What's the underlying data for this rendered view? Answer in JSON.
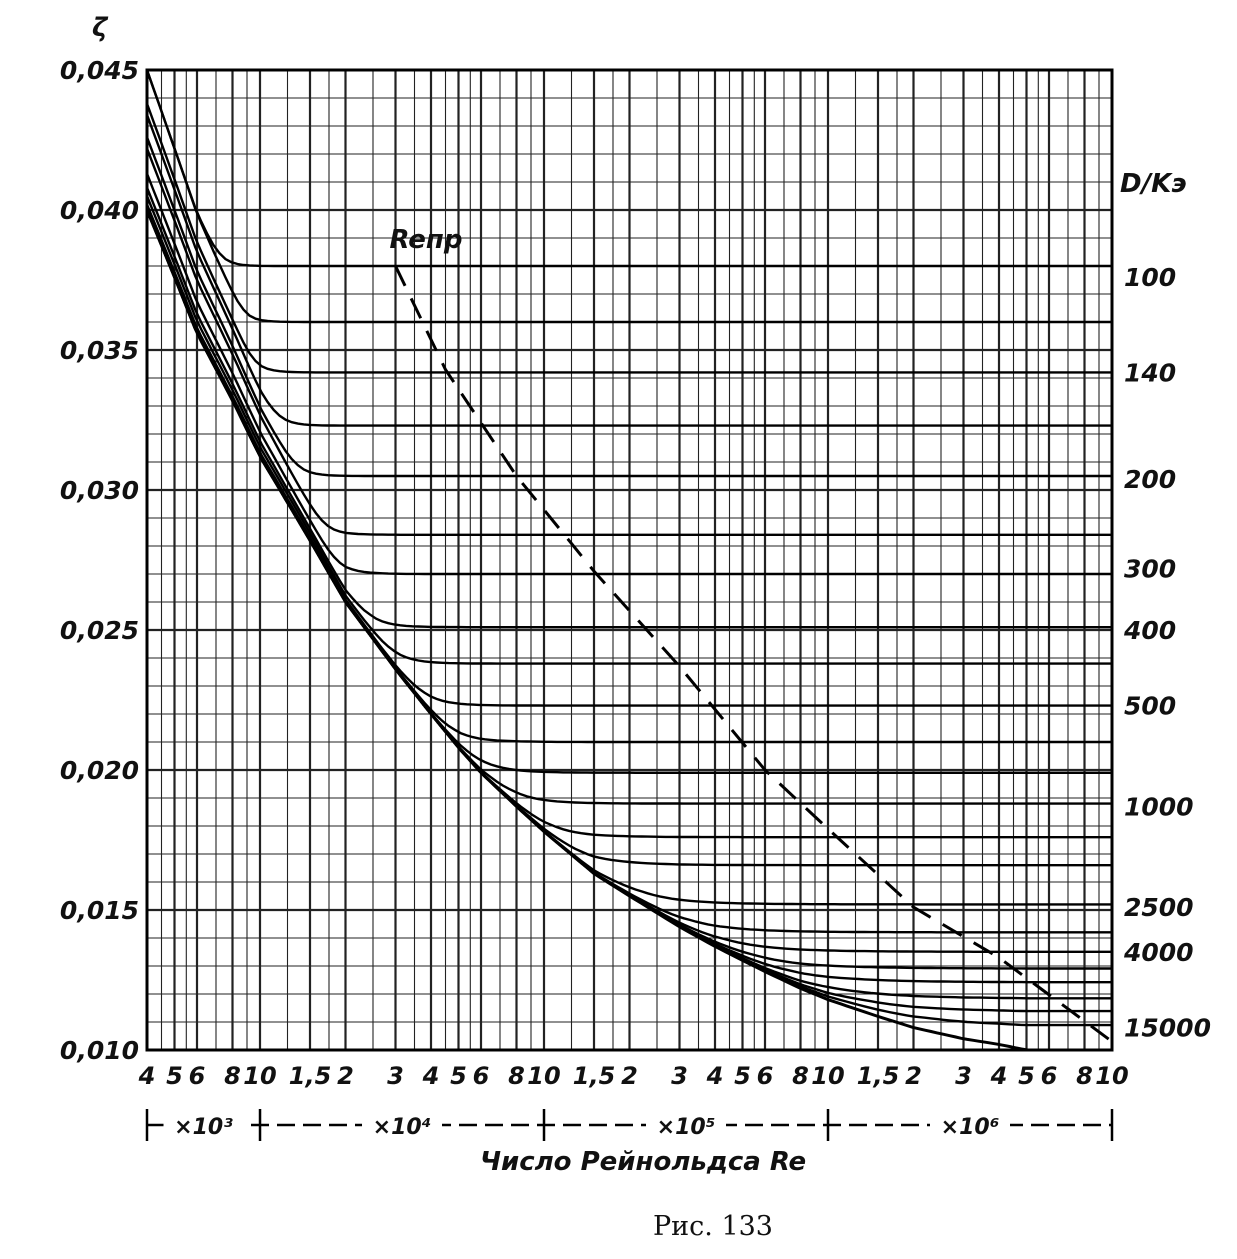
{
  "chart_data": {
    "type": "line",
    "title": "",
    "caption": "Рис. 133",
    "ylabel": "ζ",
    "xlabel": "Число Рейнольдса Re",
    "right_axis_label": "D/Kэ",
    "xscale": "log",
    "xlim": [
      4000,
      10000000
    ],
    "ylim": [
      0.01,
      0.045
    ],
    "grid": true,
    "legend": "none",
    "y_ticks": [
      "0,010",
      "0,015",
      "0,020",
      "0,025",
      "0,030",
      "0,035",
      "0,040",
      "0,045"
    ],
    "y_tick_values": [
      0.01,
      0.015,
      0.02,
      0.025,
      0.03,
      0.035,
      0.04,
      0.045
    ],
    "x_ticks": [
      {
        "label": "4",
        "value": 4000
      },
      {
        "label": "5",
        "value": 5000
      },
      {
        "label": "6",
        "value": 6000
      },
      {
        "label": "8",
        "value": 8000
      },
      {
        "label": "10",
        "value": 10000
      },
      {
        "label": "1,5",
        "value": 15000
      },
      {
        "label": "2",
        "value": 20000
      },
      {
        "label": "3",
        "value": 30000
      },
      {
        "label": "4",
        "value": 40000
      },
      {
        "label": "5",
        "value": 50000
      },
      {
        "label": "6",
        "value": 60000
      },
      {
        "label": "8",
        "value": 80000
      },
      {
        "label": "10",
        "value": 100000
      },
      {
        "label": "1,5",
        "value": 150000
      },
      {
        "label": "2",
        "value": 200000
      },
      {
        "label": "3",
        "value": 300000
      },
      {
        "label": "4",
        "value": 400000
      },
      {
        "label": "5",
        "value": 500000
      },
      {
        "label": "6",
        "value": 600000
      },
      {
        "label": "8",
        "value": 800000
      },
      {
        "label": "10",
        "value": 1000000
      },
      {
        "label": "1,5",
        "value": 1500000
      },
      {
        "label": "2",
        "value": 2000000
      },
      {
        "label": "3",
        "value": 3000000
      },
      {
        "label": "4",
        "value": 4000000
      },
      {
        "label": "5",
        "value": 5000000
      },
      {
        "label": "6",
        "value": 6000000
      },
      {
        "label": "8",
        "value": 8000000
      },
      {
        "label": "10",
        "value": 10000000
      }
    ],
    "multipliers": [
      {
        "label": "×10³",
        "from": 4000,
        "to": 10000
      },
      {
        "label": "×10⁴",
        "from": 10000,
        "to": 100000
      },
      {
        "label": "×10⁵",
        "from": 100000,
        "to": 1000000
      },
      {
        "label": "×10⁶",
        "from": 1000000,
        "to": 10000000
      }
    ],
    "smooth_curve": {
      "name": "",
      "x": [
        4000,
        5000,
        6000,
        8000,
        10000,
        15000,
        20000,
        30000,
        40000,
        50000,
        60000,
        80000,
        100000,
        150000,
        200000,
        300000,
        400000,
        500000,
        600000,
        800000,
        1000000,
        1500000,
        2000000,
        3000000,
        4000000,
        5000000,
        6000000,
        8000000,
        10000000
      ],
      "y": [
        0.04,
        0.0376,
        0.0356,
        0.0332,
        0.0312,
        0.0282,
        0.026,
        0.0236,
        0.022,
        0.0208,
        0.0199,
        0.0187,
        0.0178,
        0.0163,
        0.0155,
        0.0144,
        0.0137,
        0.0132,
        0.0128,
        0.0122,
        0.0118,
        0.0112,
        0.0108,
        0.0104,
        0.0102,
        0.01,
        0.01,
        0.01,
        0.01
      ]
    },
    "rough_pipe_series": [
      {
        "name": "100",
        "asymptote": 0.038,
        "start": [
          4000,
          0.045
        ]
      },
      {
        "name": "",
        "asymptote": 0.036,
        "start": [
          4000,
          0.045
        ]
      },
      {
        "name": "140",
        "asymptote": 0.0342,
        "start": [
          4000,
          0.0438
        ]
      },
      {
        "name": "",
        "asymptote": 0.0323,
        "start": [
          4000,
          0.0434
        ]
      },
      {
        "name": "200",
        "asymptote": 0.0305,
        "start": [
          4000,
          0.0426
        ]
      },
      {
        "name": "",
        "asymptote": 0.0284,
        "start": [
          4000,
          0.0422
        ]
      },
      {
        "name": "300",
        "asymptote": 0.027,
        "start": [
          4000,
          0.0413
        ]
      },
      {
        "name": "400",
        "asymptote": 0.0251,
        "start": [
          4000,
          0.0408
        ]
      },
      {
        "name": "",
        "asymptote": 0.0238,
        "start": [
          4000,
          0.0405
        ]
      },
      {
        "name": "500",
        "asymptote": 0.0223,
        "start": [
          4000,
          0.0402
        ]
      },
      {
        "name": "",
        "asymptote": 0.021,
        "start": [
          4000,
          0.0401
        ]
      },
      {
        "name": "",
        "asymptote": 0.0199,
        "start": [
          4000,
          0.04
        ]
      },
      {
        "name": "1000",
        "asymptote": 0.0188,
        "start": [
          4000,
          0.04
        ]
      },
      {
        "name": "",
        "asymptote": 0.0176,
        "start": [
          4000,
          0.04
        ]
      },
      {
        "name": "",
        "asymptote": 0.0166,
        "start": [
          4000,
          0.04
        ]
      },
      {
        "name": "2500",
        "asymptote": 0.0152,
        "start": [
          4000,
          0.04
        ]
      },
      {
        "name": "",
        "asymptote": 0.0142,
        "start": [
          4000,
          0.04
        ]
      },
      {
        "name": "4000",
        "asymptote": 0.0135,
        "start": [
          4000,
          0.04
        ]
      },
      {
        "name": "",
        "asymptote": 0.0129,
        "start": [
          4000,
          0.04
        ]
      },
      {
        "name": "",
        "asymptote": 0.0124,
        "start": [
          4000,
          0.04
        ]
      },
      {
        "name": "",
        "asymptote": 0.0118,
        "start": [
          4000,
          0.04
        ]
      },
      {
        "name": "",
        "asymptote": 0.0113,
        "start": [
          4000,
          0.04
        ]
      },
      {
        "name": "15000",
        "asymptote": 0.0107,
        "start": [
          4000,
          0.04
        ]
      }
    ],
    "right_labels": [
      {
        "label": "100",
        "y": 0.0376
      },
      {
        "label": "140",
        "y": 0.0342
      },
      {
        "label": "200",
        "y": 0.0304
      },
      {
        "label": "300",
        "y": 0.0272
      },
      {
        "label": "400",
        "y": 0.025
      },
      {
        "label": "500",
        "y": 0.0223
      },
      {
        "label": "1000",
        "y": 0.0187
      },
      {
        "label": "2500",
        "y": 0.0151
      },
      {
        "label": "4000",
        "y": 0.0135
      },
      {
        "label": "15000",
        "y": 0.0108
      }
    ],
    "dashed_line": {
      "name": "Reпр",
      "x": [
        30000,
        45000,
        80000,
        150000,
        300000,
        600000,
        1000000,
        2000000,
        4000000,
        10000000
      ],
      "y": [
        0.038,
        0.0343,
        0.0305,
        0.0271,
        0.0237,
        0.02,
        0.0179,
        0.0151,
        0.0133,
        0.0103
      ]
    }
  }
}
